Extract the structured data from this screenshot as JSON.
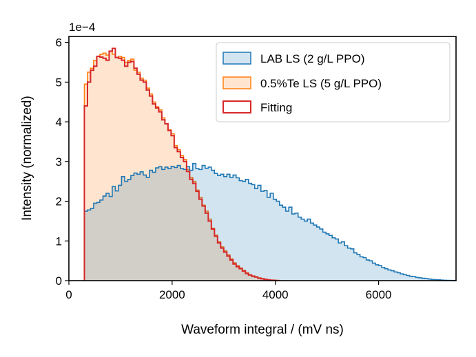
{
  "chart_data": {
    "type": "histogram",
    "xlabel": "Waveform integral / (mV ns)",
    "ylabel": "Intensity (normalized)",
    "y_offset_label": "1e−4",
    "xlim": [
      0,
      7500
    ],
    "ylim": [
      0,
      6.15
    ],
    "x_ticks": [
      0,
      2000,
      4000,
      6000
    ],
    "x_tick_labels": [
      "0",
      "2000",
      "4000",
      "6000"
    ],
    "y_ticks": [
      0,
      1,
      2,
      3,
      4,
      5,
      6
    ],
    "y_tick_labels": [
      "0",
      "1",
      "2",
      "3",
      "4",
      "5",
      "6"
    ],
    "legend_position": "top-right",
    "series": [
      {
        "name": "LAB LS (2 g/L PPO)",
        "edge_color": "#1f77b4",
        "fill_color": "#1f77b4",
        "bin_start": 300,
        "bin_width": 60,
        "values": [
          1.75,
          1.78,
          1.82,
          1.95,
          1.97,
          2.03,
          2.13,
          2.2,
          2.12,
          2.37,
          2.26,
          2.4,
          2.62,
          2.5,
          2.55,
          2.65,
          2.71,
          2.68,
          2.74,
          2.66,
          2.6,
          2.78,
          2.73,
          2.84,
          2.87,
          2.8,
          2.86,
          2.82,
          2.88,
          2.85,
          2.9,
          2.82,
          2.8,
          2.87,
          2.78,
          2.95,
          2.82,
          2.8,
          2.9,
          2.83,
          2.86,
          2.78,
          2.7,
          2.65,
          2.68,
          2.62,
          2.68,
          2.6,
          2.66,
          2.59,
          2.52,
          2.5,
          2.55,
          2.45,
          2.42,
          2.32,
          2.4,
          2.25,
          2.27,
          2.1,
          2.2,
          2.05,
          2.0,
          1.9,
          1.85,
          1.75,
          1.85,
          1.68,
          1.7,
          1.6,
          1.55,
          1.5,
          1.55,
          1.45,
          1.4,
          1.35,
          1.3,
          1.22,
          1.18,
          1.14,
          1.08,
          1.05,
          0.95,
          0.98,
          0.88,
          0.82,
          0.8,
          0.7,
          0.66,
          0.6,
          0.58,
          0.52,
          0.5,
          0.44,
          0.4,
          0.38,
          0.33,
          0.3,
          0.27,
          0.25,
          0.22,
          0.2,
          0.17,
          0.15,
          0.13,
          0.11,
          0.1,
          0.08,
          0.07,
          0.06,
          0.05,
          0.04,
          0.03,
          0.025,
          0.02,
          0.015,
          0.01,
          0.008,
          0.005,
          0.003
        ]
      },
      {
        "name": "0.5%Te LS (5 g/L PPO)",
        "edge_color": "#ff7f0e",
        "fill_color": "#ff7f0e",
        "bin_start": 300,
        "bin_width": 60,
        "values": [
          4.95,
          5.25,
          5.35,
          5.55,
          5.65,
          5.7,
          5.73,
          5.68,
          5.78,
          5.7,
          5.62,
          5.65,
          5.62,
          5.5,
          5.55,
          5.58,
          5.3,
          5.25,
          5.1,
          5.05,
          4.85,
          4.7,
          4.5,
          4.38,
          4.3,
          4.1,
          3.95,
          3.8,
          3.7,
          3.4,
          3.3,
          3.15,
          3.05,
          2.8,
          2.6,
          2.5,
          2.28,
          2.1,
          1.9,
          1.75,
          1.55,
          1.32,
          1.15,
          0.98,
          0.85,
          0.75,
          0.65,
          0.55,
          0.45,
          0.38,
          0.32,
          0.26,
          0.2,
          0.15,
          0.12,
          0.1,
          0.07,
          0.05,
          0.04,
          0.02,
          0.015,
          0.01,
          0.005
        ]
      },
      {
        "name": "Fitting",
        "edge_color": "#d62728",
        "fill_color": "none",
        "bin_start": 300,
        "bin_width": 60,
        "values": [
          4.4,
          5.0,
          5.3,
          5.4,
          5.65,
          5.63,
          5.6,
          5.55,
          5.78,
          5.85,
          5.62,
          5.6,
          5.55,
          5.4,
          5.5,
          5.52,
          5.35,
          5.2,
          5.05,
          5.0,
          4.8,
          4.65,
          4.45,
          4.35,
          4.25,
          4.05,
          3.95,
          3.78,
          3.65,
          3.35,
          3.25,
          3.1,
          3.0,
          2.75,
          2.55,
          2.45,
          2.25,
          2.05,
          1.88,
          1.7,
          1.5,
          1.3,
          1.12,
          0.95,
          0.82,
          0.72,
          0.62,
          0.52,
          0.42,
          0.35,
          0.3,
          0.24,
          0.18,
          0.14,
          0.11,
          0.09,
          0.06,
          0.045,
          0.03,
          0.02,
          0.01,
          0.006,
          0.003
        ]
      }
    ]
  }
}
